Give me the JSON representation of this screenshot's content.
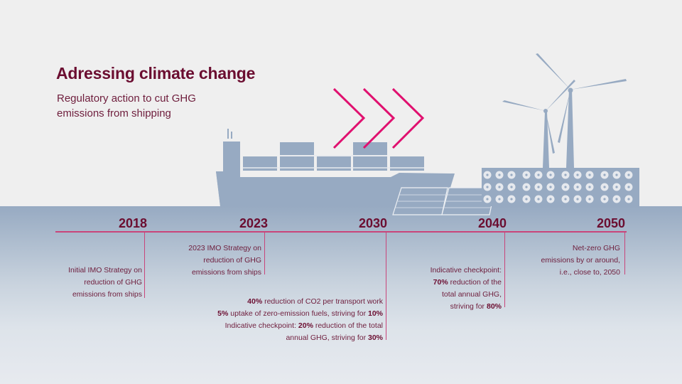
{
  "header": {
    "title": "Adressing climate change",
    "subtitle_line1": "Regulatory action to cut GHG",
    "subtitle_line2": "emissions from shipping"
  },
  "colors": {
    "title": "#6b0d30",
    "text": "#6e1d3c",
    "accent_line": "#c9457a",
    "chevrons": "#e0106f",
    "illustration": "#97aac2",
    "background": "#efefef"
  },
  "illustration": {
    "elements": [
      "container-ship",
      "chevron-arrows",
      "solar-panels",
      "wind-turbines",
      "battery-block"
    ]
  },
  "timeline": {
    "milestones": [
      {
        "year": "2018",
        "lines": [
          "Initial IMO Strategy on",
          "reduction of GHG",
          "emissions from ships"
        ]
      },
      {
        "year": "2023",
        "lines": [
          "2023 IMO Strategy on",
          "reduction of GHG",
          "emissions from ships"
        ]
      },
      {
        "year": "2030",
        "lines": [
          {
            "bold": "40%",
            "text": " reduction of CO2 per transport work"
          },
          {
            "bold": "5%",
            "text": " uptake of zero-emission fuels, striving for ",
            "bold2": "10%"
          },
          {
            "pre": "Indicative checkpoint: ",
            "bold": "20%",
            "text": " reduction of the total"
          },
          {
            "pre": "annual GHG, striving for ",
            "bold": "30%"
          }
        ]
      },
      {
        "year": "2040",
        "lines": [
          {
            "pre": "Indicative checkpoint:"
          },
          {
            "bold": "70%",
            "text": " reduction of the"
          },
          {
            "pre": "total annual GHG,"
          },
          {
            "pre": "striving for ",
            "bold": "80%"
          }
        ]
      },
      {
        "year": "2050",
        "lines": [
          "Net-zero GHG",
          "emissions by or around,",
          "i.e., close to, 2050"
        ]
      }
    ]
  }
}
